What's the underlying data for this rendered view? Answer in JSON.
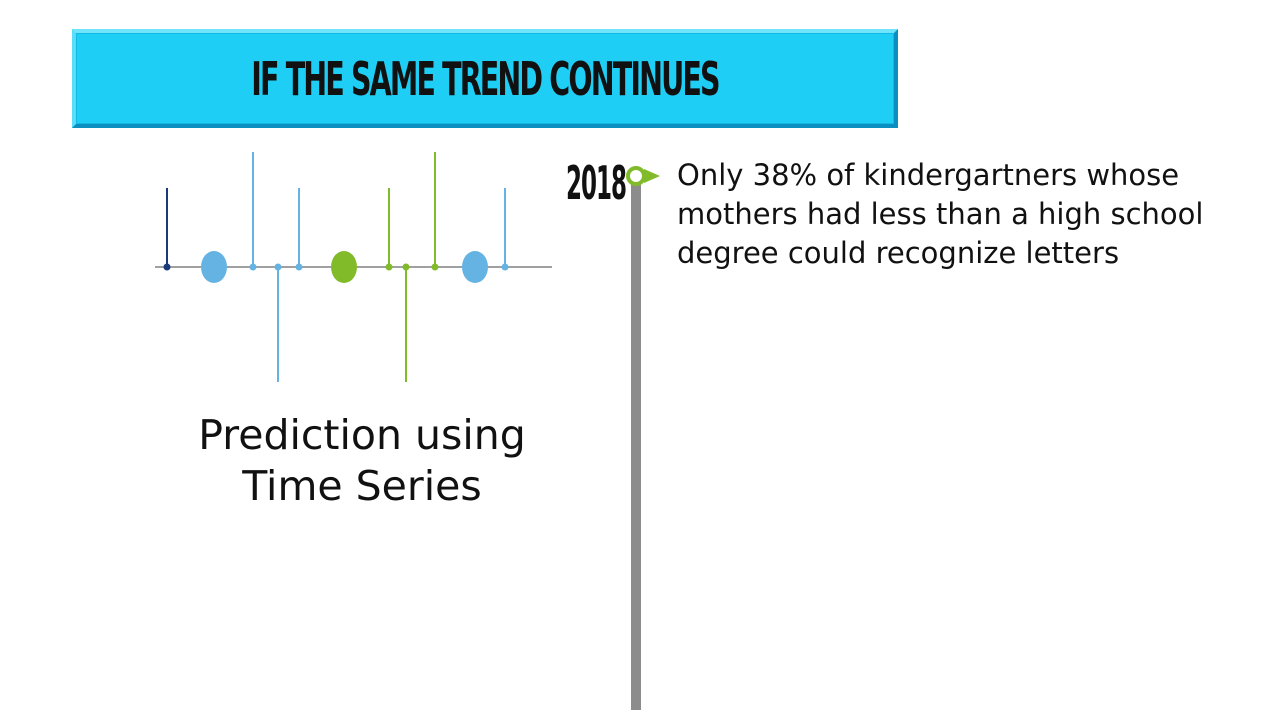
{
  "banner": {
    "title": "IF THE SAME TREND CONTINUES",
    "color": "#1fcef5"
  },
  "graphic": {
    "icon": "time-series-stem-icon",
    "colors": {
      "navy": "#1b3a7a",
      "light_blue": "#65b3e3",
      "green": "#82bb2a",
      "axis": "#808080"
    }
  },
  "caption": {
    "line1": "Prediction using",
    "line2": "Time Series"
  },
  "timeline": {
    "bar_color": "#8c8c8c",
    "marker_color": "#82bb2a",
    "events": [
      {
        "year": "2018",
        "text": "Only 38% of kindergartners whose mothers had less than a high school degree could recognize letters"
      }
    ]
  }
}
